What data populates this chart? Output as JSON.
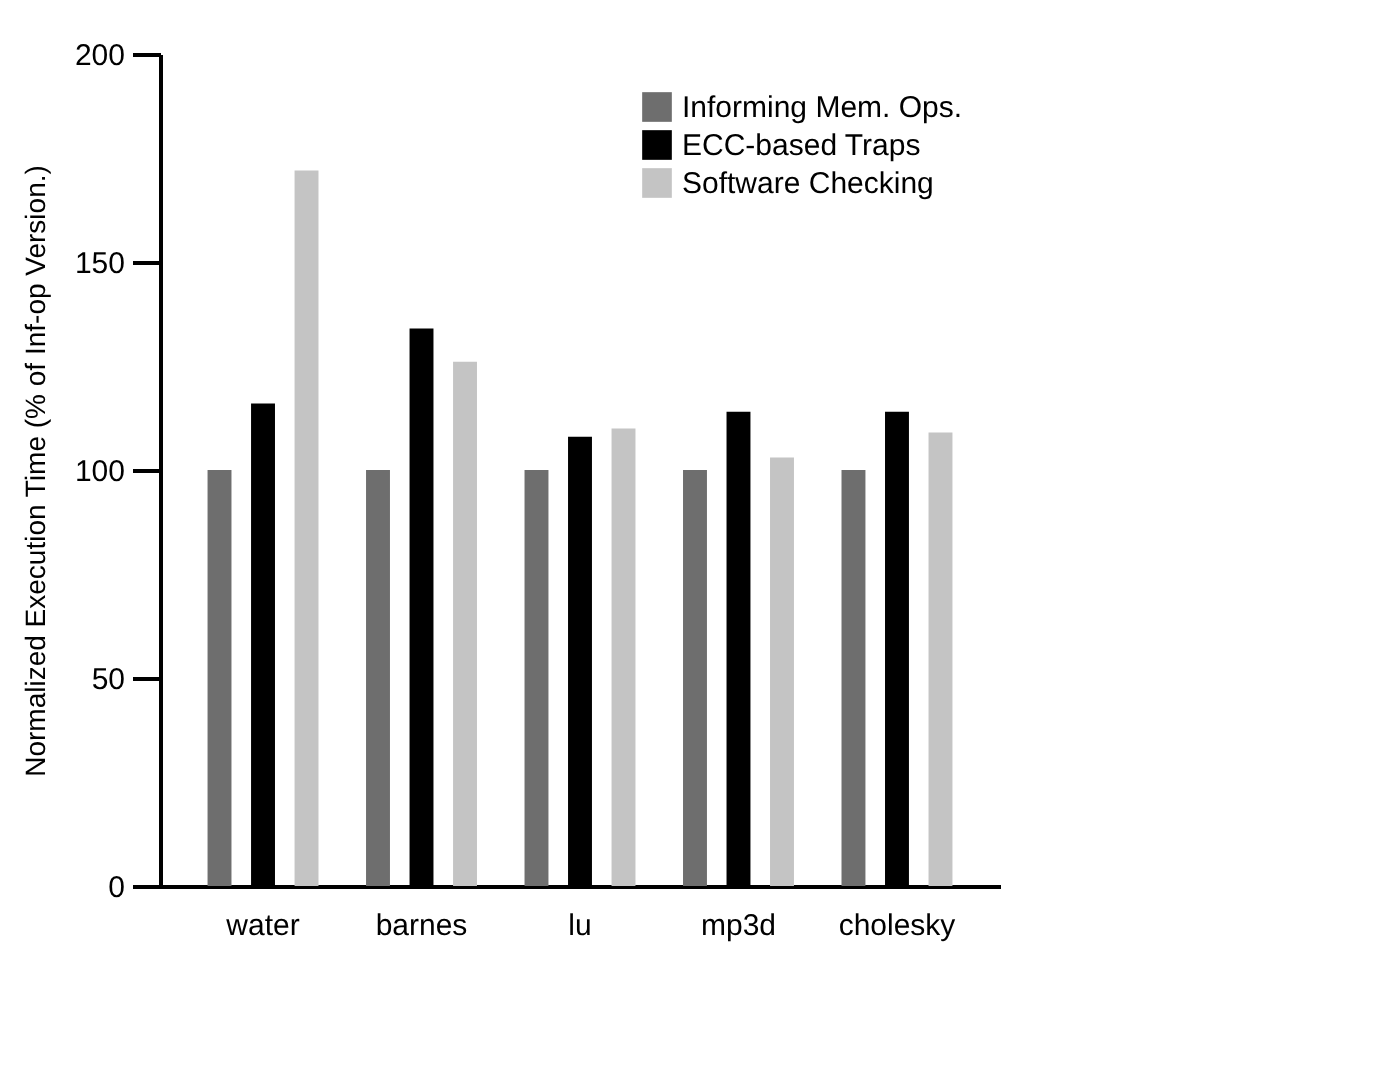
{
  "chart_data": {
    "type": "bar",
    "ylabel": "Normalized Execution Time (% of Inf-op Version.)",
    "categories": [
      "water",
      "barnes",
      "lu",
      "mp3d",
      "cholesky"
    ],
    "series": [
      {
        "name": "Informing Mem. Ops.",
        "color": "#6e6e6e",
        "values": [
          100,
          100,
          100,
          100,
          100
        ]
      },
      {
        "name": "ECC-based Traps",
        "color": "#000000",
        "values": [
          116,
          134,
          108,
          114,
          114
        ]
      },
      {
        "name": "Software Checking",
        "color": "#c4c4c4",
        "values": [
          172,
          126,
          110,
          103,
          109
        ]
      }
    ],
    "ylim": [
      0,
      200
    ],
    "yticks": [
      0,
      50,
      100,
      150,
      200
    ],
    "grid": false,
    "legend": "top right"
  }
}
